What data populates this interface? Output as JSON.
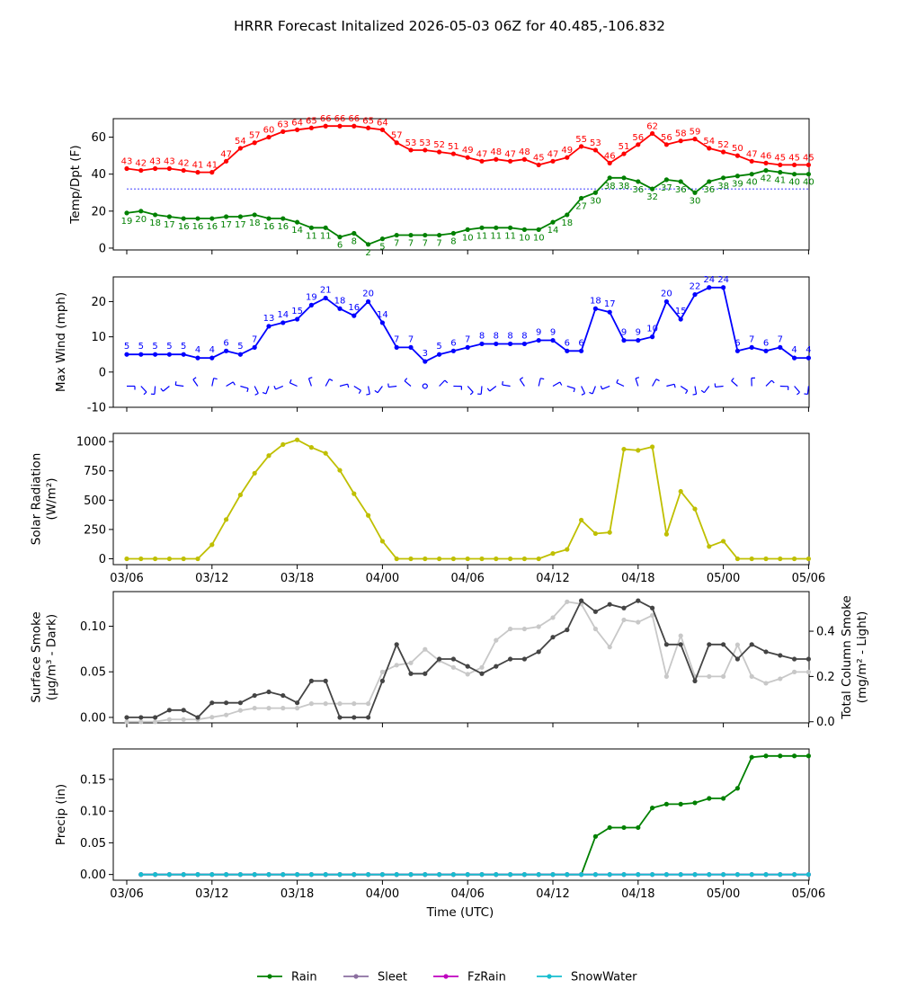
{
  "title": "HRRR Forecast Initalized 2026-05-03 06Z for 40.485,-106.832",
  "x_axis": {
    "label": "Time (UTC)",
    "tick_labels": [
      "03/06",
      "03/12",
      "03/18",
      "04/00",
      "04/06",
      "04/12",
      "04/18",
      "05/00",
      "05/06"
    ]
  },
  "chart_data": [
    {
      "type": "line",
      "name": "temp-dewpoint",
      "ylabel": "Temp/Dpt (F)",
      "ylim": [
        -1,
        70
      ],
      "yticks": [
        0,
        20,
        40,
        60
      ],
      "freezing_line": 32,
      "x_hours": [
        0,
        1,
        2,
        3,
        4,
        5,
        6,
        7,
        8,
        9,
        10,
        11,
        12,
        13,
        14,
        15,
        16,
        17,
        18,
        19,
        20,
        21,
        22,
        23,
        24,
        25,
        26,
        27,
        28,
        29,
        30,
        31,
        32,
        33,
        34,
        35,
        36,
        37,
        38,
        39,
        40,
        41,
        42,
        43,
        44,
        45,
        46,
        47,
        48
      ],
      "series": [
        {
          "color": "#ff0000",
          "values": [
            43,
            42,
            43,
            43,
            42,
            41,
            41,
            47,
            54,
            57,
            60,
            63,
            64,
            65,
            66,
            66,
            66,
            65,
            64,
            57,
            53,
            53,
            52,
            51,
            49,
            47,
            48,
            47,
            48,
            45,
            47,
            49,
            55,
            53,
            46,
            51,
            56,
            62,
            56,
            58,
            59,
            54,
            52,
            50,
            47,
            46,
            45,
            45,
            45
          ]
        },
        {
          "color": "#008000",
          "values": [
            19,
            20,
            18,
            17,
            16,
            16,
            16,
            17,
            17,
            18,
            16,
            16,
            14,
            11,
            11,
            6,
            8,
            2,
            5,
            7,
            7,
            7,
            7,
            8,
            10,
            11,
            11,
            11,
            10,
            10,
            14,
            18,
            27,
            30,
            38,
            38,
            36,
            32,
            37,
            36,
            30,
            36,
            38,
            39,
            40,
            42,
            41,
            40,
            40
          ]
        }
      ]
    },
    {
      "type": "line",
      "name": "max-wind",
      "ylabel": "Max Wind (mph)",
      "ylim": [
        -10,
        27
      ],
      "yticks": [
        -10,
        0,
        10,
        20
      ],
      "color": "#0000ff",
      "x_hours": [
        0,
        1,
        2,
        3,
        4,
        5,
        6,
        7,
        8,
        9,
        10,
        11,
        12,
        13,
        14,
        15,
        16,
        17,
        18,
        19,
        20,
        21,
        22,
        23,
        24,
        25,
        26,
        27,
        28,
        29,
        30,
        31,
        32,
        33,
        34,
        35,
        36,
        37,
        38,
        39,
        40,
        41,
        42,
        43,
        44,
        45,
        46,
        47,
        48
      ],
      "values": [
        5,
        5,
        5,
        5,
        5,
        4,
        4,
        6,
        5,
        7,
        13,
        14,
        15,
        19,
        21,
        18,
        16,
        20,
        14,
        7,
        7,
        3,
        5,
        6,
        7,
        8,
        8,
        8,
        8,
        9,
        9,
        6,
        6,
        18,
        17,
        9,
        9,
        10,
        20,
        15,
        22,
        24,
        24,
        6,
        7,
        6,
        7,
        4,
        4
      ]
    },
    {
      "type": "line",
      "name": "solar-radiation",
      "ylabel": "Solar Radiation",
      "ylabel2": "(W/m²)",
      "ylim": [
        -50,
        1070
      ],
      "yticks": [
        0,
        250,
        500,
        750,
        1000
      ],
      "color": "#bfbf00",
      "x_hours": [
        0,
        1,
        2,
        3,
        4,
        5,
        6,
        7,
        8,
        9,
        10,
        11,
        12,
        13,
        14,
        15,
        16,
        17,
        18,
        19,
        20,
        21,
        22,
        23,
        24,
        25,
        26,
        27,
        28,
        29,
        30,
        31,
        32,
        33,
        34,
        35,
        36,
        37,
        38,
        39,
        40,
        41,
        42,
        43,
        44,
        45,
        46,
        47,
        48
      ],
      "values": [
        0,
        0,
        0,
        0,
        0,
        0,
        120,
        335,
        545,
        730,
        880,
        975,
        1015,
        950,
        900,
        755,
        555,
        370,
        150,
        0,
        0,
        0,
        0,
        0,
        0,
        0,
        0,
        0,
        0,
        0,
        45,
        80,
        330,
        215,
        225,
        935,
        925,
        955,
        210,
        575,
        425,
        105,
        150,
        0,
        0,
        0,
        0,
        0,
        0
      ]
    },
    {
      "type": "line",
      "name": "smoke",
      "ylabel": "Surface Smoke",
      "ylabel2": "(μg/m³ - Dark)",
      "ylabel_right": "Total Column Smoke",
      "ylabel_right2": "(mg/m² - Light)",
      "ylim": [
        -0.006,
        0.138
      ],
      "yticks": [
        0.0,
        0.05,
        0.1
      ],
      "ylim_right": [
        -0.005,
        0.575
      ],
      "yticks_right": [
        0.0,
        0.2,
        0.4
      ],
      "x_hours": [
        0,
        1,
        2,
        3,
        4,
        5,
        6,
        7,
        8,
        9,
        10,
        11,
        12,
        13,
        14,
        15,
        16,
        17,
        18,
        19,
        20,
        21,
        22,
        23,
        24,
        25,
        26,
        27,
        28,
        29,
        30,
        31,
        32,
        33,
        34,
        35,
        36,
        37,
        38,
        39,
        40,
        41,
        42,
        43,
        44,
        45,
        46,
        47,
        48
      ],
      "series": [
        {
          "color": "#444444",
          "axis": "left",
          "values": [
            0,
            0,
            0,
            0.008,
            0.008,
            0,
            0.016,
            0.016,
            0.016,
            0.024,
            0.028,
            0.024,
            0.016,
            0.04,
            0.04,
            0,
            0,
            0,
            0.04,
            0.08,
            0.048,
            0.048,
            0.064,
            0.064,
            0.056,
            0.048,
            0.056,
            0.064,
            0.064,
            0.072,
            0.088,
            0.096,
            0.128,
            0.116,
            0.124,
            0.12,
            0.128,
            0.12,
            0.08,
            0.08,
            0.04,
            0.08,
            0.08,
            0.064,
            0.08,
            0.072,
            0.068,
            0.064,
            0.064
          ]
        },
        {
          "color": "#c8c8c8",
          "axis": "right",
          "values": [
            0,
            0,
            0,
            0.01,
            0.01,
            0.01,
            0.02,
            0.03,
            0.05,
            0.06,
            0.06,
            0.06,
            0.06,
            0.08,
            0.08,
            0.08,
            0.08,
            0.08,
            0.22,
            0.25,
            0.26,
            0.32,
            0.27,
            0.24,
            0.21,
            0.24,
            0.36,
            0.41,
            0.41,
            0.42,
            0.46,
            0.53,
            0.52,
            0.41,
            0.33,
            0.45,
            0.44,
            0.47,
            0.2,
            0.38,
            0.2,
            0.2,
            0.2,
            0.34,
            0.2,
            0.17,
            0.19,
            0.22,
            0.22
          ]
        }
      ]
    },
    {
      "type": "line",
      "name": "precip",
      "ylabel": "Precip (in)",
      "ylim": [
        -0.009,
        0.198
      ],
      "yticks": [
        0.0,
        0.05,
        0.1,
        0.15
      ],
      "x_hours": [
        1,
        2,
        3,
        4,
        5,
        6,
        7,
        8,
        9,
        10,
        11,
        12,
        13,
        14,
        15,
        16,
        17,
        18,
        19,
        20,
        21,
        22,
        23,
        24,
        25,
        26,
        27,
        28,
        29,
        30,
        31,
        32,
        33,
        34,
        35,
        36,
        37,
        38,
        39,
        40,
        41,
        42,
        43,
        44,
        45,
        46,
        47,
        48
      ],
      "series": [
        {
          "name": "Rain",
          "color": "#008000",
          "values": [
            0,
            0,
            0,
            0,
            0,
            0,
            0,
            0,
            0,
            0,
            0,
            0,
            0,
            0,
            0,
            0,
            0,
            0,
            0,
            0,
            0,
            0,
            0,
            0,
            0,
            0,
            0,
            0,
            0,
            0,
            0,
            0,
            0.06,
            0.074,
            0.074,
            0.074,
            0.105,
            0.111,
            0.111,
            0.113,
            0.12,
            0.12,
            0.136,
            0.185,
            0.187,
            0.187,
            0.187,
            0.187
          ]
        },
        {
          "name": "Sleet",
          "color": "#8c6fa0",
          "values": [
            0,
            0,
            0,
            0,
            0,
            0,
            0,
            0,
            0,
            0,
            0,
            0,
            0,
            0,
            0,
            0,
            0,
            0,
            0,
            0,
            0,
            0,
            0,
            0,
            0,
            0,
            0,
            0,
            0,
            0,
            0,
            0,
            0,
            0,
            0,
            0,
            0,
            0,
            0,
            0,
            0,
            0,
            0,
            0,
            0,
            0,
            0,
            0
          ]
        },
        {
          "name": "FzRain",
          "color": "#bf00bf",
          "values": [
            0,
            0,
            0,
            0,
            0,
            0,
            0,
            0,
            0,
            0,
            0,
            0,
            0,
            0,
            0,
            0,
            0,
            0,
            0,
            0,
            0,
            0,
            0,
            0,
            0,
            0,
            0,
            0,
            0,
            0,
            0,
            0,
            0,
            0,
            0,
            0,
            0,
            0,
            0,
            0,
            0,
            0,
            0,
            0,
            0,
            0,
            0,
            0
          ]
        },
        {
          "name": "SnowWater",
          "color": "#17becf",
          "values": [
            0,
            0,
            0,
            0,
            0,
            0,
            0,
            0,
            0,
            0,
            0,
            0,
            0,
            0,
            0,
            0,
            0,
            0,
            0,
            0,
            0,
            0,
            0,
            0,
            0,
            0,
            0,
            0,
            0,
            0,
            0,
            0,
            0,
            0,
            0,
            0,
            0,
            0,
            0,
            0,
            0,
            0,
            0,
            0,
            0,
            0,
            0,
            0
          ]
        }
      ]
    }
  ]
}
